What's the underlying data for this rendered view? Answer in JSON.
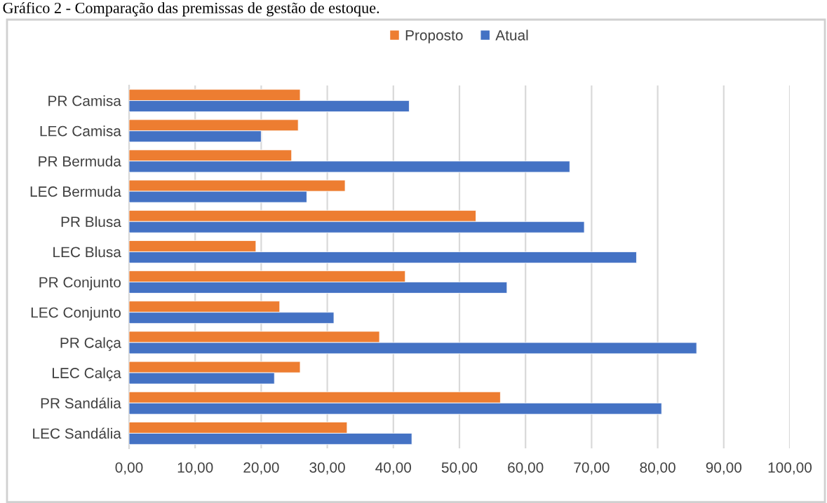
{
  "chart_data": {
    "type": "bar",
    "orientation": "horizontal",
    "title": "Gráfico 2 - Comparação das premissas de gestão de estoque.",
    "categories": [
      "PR Camisa",
      "LEC Camisa",
      "PR Bermuda",
      "LEC Bermuda",
      "PR Blusa",
      "LEC Blusa",
      "PR Conjunto",
      "LEC Conjunto",
      "PR Calça",
      "LEC Calça",
      "PR Sandália",
      "LEC Sandália"
    ],
    "series": [
      {
        "name": "Proposto",
        "color": "#ed7d31",
        "values": [
          25.9,
          25.6,
          24.6,
          32.7,
          52.5,
          19.2,
          41.8,
          22.8,
          37.9,
          25.9,
          56.2,
          33.0
        ]
      },
      {
        "name": "Atual",
        "color": "#4472c4",
        "values": [
          42.4,
          20.0,
          66.7,
          26.9,
          68.9,
          76.8,
          57.2,
          31.0,
          85.9,
          22.0,
          80.6,
          42.8
        ]
      }
    ],
    "xlim": [
      0,
      100
    ],
    "xticks": [
      {
        "value": 0,
        "label": "0,00"
      },
      {
        "value": 10,
        "label": "10,00"
      },
      {
        "value": 20,
        "label": "20,00"
      },
      {
        "value": 30,
        "label": "30,00"
      },
      {
        "value": 40,
        "label": "40,00"
      },
      {
        "value": 50,
        "label": "50,00"
      },
      {
        "value": 60,
        "label": "60,00"
      },
      {
        "value": 70,
        "label": "70,00"
      },
      {
        "value": 80,
        "label": "80,00"
      },
      {
        "value": 90,
        "label": "90,00"
      },
      {
        "value": 100,
        "label": "100,00"
      }
    ],
    "grid": "x",
    "legend": "top"
  }
}
